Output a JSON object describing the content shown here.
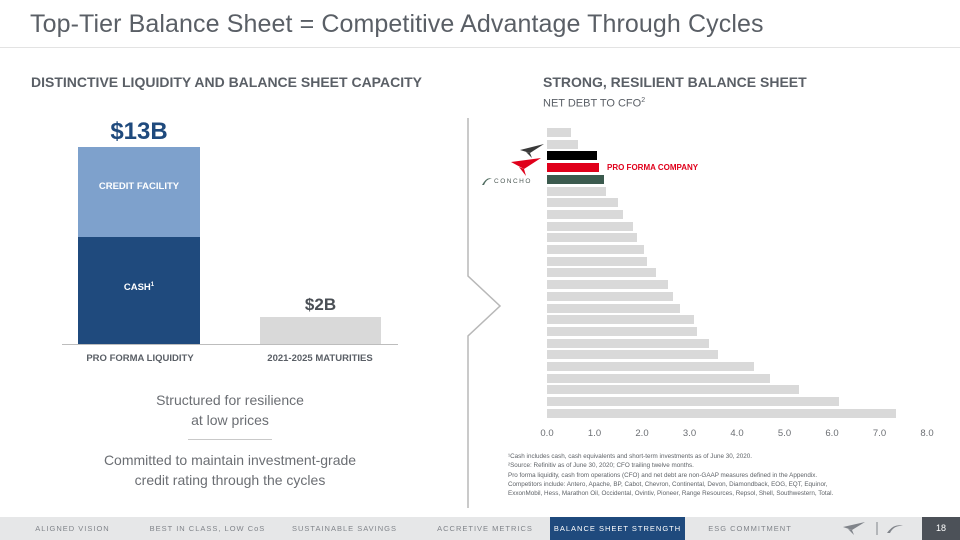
{
  "slide": {
    "title": "Top-Tier Balance Sheet = Competitive Advantage Through Cycles",
    "page_number": "18"
  },
  "left": {
    "heading": "DISTINCTIVE LIQUIDITY AND BALANCE SHEET CAPACITY",
    "liquidity_total": "$13B",
    "credit_facility_label": "CREDIT FACILITY",
    "cash_label": "CASH",
    "cash_sup": "1",
    "maturities_total": "$2B",
    "category_1": "PRO FORMA LIQUIDITY",
    "category_2": "2021-2025 MATURITIES",
    "quote_1": "Structured for resilience at low prices",
    "quote_2": "Committed to maintain investment-grade credit rating through the cycles"
  },
  "right": {
    "heading": "STRONG, RESILIENT BALANCE SHEET",
    "subheading": "NET DEBT TO CFO",
    "subheading_sup": "2",
    "pro_forma_label": "PRO FORMA COMPANY",
    "concho_text": "CONCHO",
    "footnotes": [
      "¹Cash includes cash, cash equivalents and short-term investments as of June 30, 2020.",
      "²Source: Refinitiv as of June 30, 2020; CFO trailing twelve months.",
      "Pro forma liquidity, cash from operations (CFO) and net debt are non-GAAP measures defined in the Appendix.",
      "Competitors include: Antero, Apache, BP, Cabot, Chevron, Continental, Devon, Diamondback, EOG, EQT, Equinor,",
      "ExxonMobil, Hess, Marathon Oil, Occidental, Ovintiv, Pioneer, Range Resources, Repsol, Shell, Southwestern, Total."
    ]
  },
  "colors": {
    "navy": "#1f4a7d",
    "light_blue": "#7ea1cc",
    "gray_bar": "#d9d9d9",
    "conocophillips_bar": "#000000",
    "pro_forma_bar": "#e0001b",
    "concho_bar": "#3b5a4e"
  },
  "chart_data": [
    {
      "type": "bar",
      "categories": [
        "PRO FORMA LIQUIDITY",
        "2021-2025 MATURITIES"
      ],
      "series": [
        {
          "name": "CASH",
          "values": [
            5.5,
            null
          ]
        },
        {
          "name": "CREDIT FACILITY",
          "values": [
            7.5,
            null
          ]
        },
        {
          "name": "",
          "values": [
            null,
            2
          ]
        }
      ],
      "labels": [
        "$13B",
        "$2B"
      ]
    },
    {
      "type": "bar",
      "orientation": "horizontal",
      "title": "NET DEBT TO CFO",
      "xlim": [
        0,
        8
      ],
      "xticks": [
        "0.0",
        "1.0",
        "2.0",
        "3.0",
        "4.0",
        "5.0",
        "6.0",
        "7.0",
        "8.0"
      ],
      "values": [
        0.5,
        0.65,
        1.05,
        1.1,
        1.2,
        1.25,
        1.5,
        1.6,
        1.8,
        1.9,
        2.05,
        2.1,
        2.3,
        2.55,
        2.65,
        2.8,
        3.1,
        3.15,
        3.4,
        3.6,
        4.35,
        4.7,
        5.3,
        6.15,
        7.35
      ],
      "highlight_colors": [
        "#d9d9d9",
        "#d9d9d9",
        "#000000",
        "#e0001b",
        "#3b5a4e"
      ],
      "annotations": [
        "PRO FORMA COMPANY"
      ]
    }
  ],
  "nav": {
    "items": [
      {
        "label": "ALIGNED VISION",
        "active": false
      },
      {
        "label": "BEST IN CLASS, LOW CoS",
        "active": false
      },
      {
        "label": "SUSTAINABLE SAVINGS",
        "active": false
      },
      {
        "label": "ACCRETIVE METRICS",
        "active": false
      },
      {
        "label": "BALANCE SHEET STRENGTH",
        "active": true
      },
      {
        "label": "ESG COMMITMENT",
        "active": false
      }
    ]
  },
  "icons": [
    "conocophillips-logo-icon",
    "concho-logo-icon",
    "chevron-divider-icon"
  ]
}
